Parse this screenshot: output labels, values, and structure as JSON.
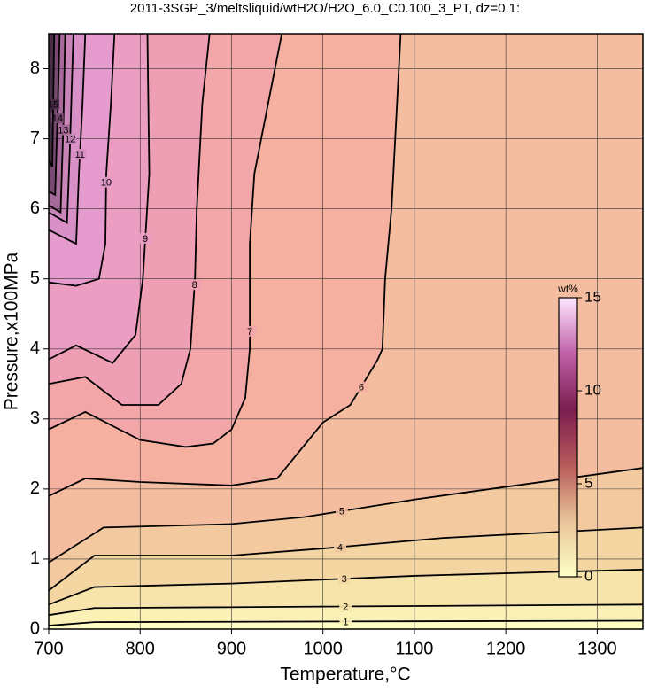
{
  "chart_data": {
    "type": "contour",
    "title": "2011-3SGP_3/meltsliquid/wtH2O/H2O_6.0_C0.100_3_PT, dz=0.1:",
    "x_label": "Temperature,°C",
    "y_label": "Pressure,x100MPa",
    "xlim": [
      700,
      1350
    ],
    "ylim": [
      0,
      8.5
    ],
    "xticks": [
      700,
      800,
      900,
      1000,
      1100,
      1200,
      1300
    ],
    "yticks": [
      0,
      1,
      2,
      3,
      4,
      5,
      6,
      7,
      8
    ],
    "grid": true,
    "base_color": "#fffcc4",
    "contours": [
      {
        "level": 1,
        "color": "#fbf1b6",
        "x": [
          700,
          750,
          1350
        ],
        "y": [
          0.05,
          0.1,
          0.12
        ]
      },
      {
        "level": 2,
        "color": "#f7e4aa",
        "x": [
          700,
          750,
          1350
        ],
        "y": [
          0.2,
          0.3,
          0.35
        ]
      },
      {
        "level": 3,
        "color": "#f4d6a2",
        "x": [
          700,
          750,
          900,
          1100,
          1350
        ],
        "y": [
          0.35,
          0.6,
          0.65,
          0.76,
          0.85
        ]
      },
      {
        "level": 4,
        "color": "#f3c9a0",
        "x": [
          700,
          750,
          900,
          1000,
          1130,
          1350
        ],
        "y": [
          0.55,
          1.05,
          1.05,
          1.15,
          1.3,
          1.45
        ]
      },
      {
        "level": 5,
        "color": "#f4bda0",
        "x": [
          700,
          760,
          900,
          980,
          1100,
          1350
        ],
        "y": [
          0.95,
          1.45,
          1.5,
          1.6,
          1.85,
          2.3
        ]
      },
      {
        "level": 6,
        "color": "#f6b09f",
        "x": [
          700,
          740,
          800,
          900,
          950,
          1000,
          1030,
          1060,
          1065,
          1068,
          1075,
          1085
        ],
        "y": [
          1.9,
          2.15,
          2.1,
          2.05,
          2.15,
          2.95,
          3.2,
          3.85,
          4.0,
          5.0,
          6.0,
          8.5
        ]
      },
      {
        "level": 7,
        "color": "#f2a6a8",
        "x": [
          700,
          740,
          800,
          850,
          880,
          900,
          915,
          920,
          920,
          925,
          940,
          955
        ],
        "y": [
          2.85,
          3.1,
          2.7,
          2.6,
          2.65,
          2.85,
          3.3,
          4.0,
          5.5,
          6.5,
          7.5,
          8.5
        ]
      },
      {
        "level": 8,
        "color": "#ee9fb3",
        "x": [
          700,
          740,
          780,
          820,
          845,
          855,
          860,
          862,
          868,
          876
        ],
        "y": [
          3.5,
          3.6,
          3.2,
          3.2,
          3.5,
          4.0,
          5.0,
          6.0,
          7.5,
          8.5
        ]
      },
      {
        "level": 9,
        "color": "#eb9dc2",
        "x": [
          700,
          730,
          770,
          795,
          803,
          810,
          808
        ],
        "y": [
          3.85,
          4.05,
          3.8,
          4.2,
          5.0,
          6.5,
          8.5
        ]
      },
      {
        "level": 10,
        "color": "#e59bcd",
        "x": [
          700,
          730,
          755,
          762,
          763,
          768,
          772
        ],
        "y": [
          4.95,
          4.9,
          5.0,
          5.5,
          6.5,
          7.5,
          8.5
        ]
      },
      {
        "level": 11,
        "color": "#d990c6",
        "x": [
          700,
          730,
          733,
          737,
          740
        ],
        "y": [
          5.7,
          5.5,
          6.5,
          7.5,
          8.5
        ]
      },
      {
        "level": 12,
        "color": "#c984b8",
        "x": [
          700,
          720,
          723,
          727
        ],
        "y": [
          5.95,
          5.8,
          6.8,
          8.5
        ]
      },
      {
        "level": 13,
        "color": "#a86a9a",
        "x": [
          700,
          713,
          716,
          718
        ],
        "y": [
          6.05,
          5.95,
          7.2,
          8.5
        ]
      },
      {
        "level": 14,
        "color": "#7a4a72",
        "x": [
          700,
          707,
          710,
          712
        ],
        "y": [
          6.25,
          6.2,
          7.5,
          8.5
        ]
      },
      {
        "level": 15,
        "color": "#4a2c48",
        "x": [
          700,
          704,
          706
        ],
        "y": [
          6.7,
          6.6,
          8.5
        ]
      }
    ],
    "colorbar": {
      "label": "wt%",
      "lim": [
        0,
        15
      ],
      "ticks": [
        0,
        5,
        10,
        15
      ],
      "colors": [
        "#ffffc8",
        "#e8c49a",
        "#b85a5a",
        "#7a1e50",
        "#c060a8",
        "#ffe8ff"
      ]
    }
  }
}
